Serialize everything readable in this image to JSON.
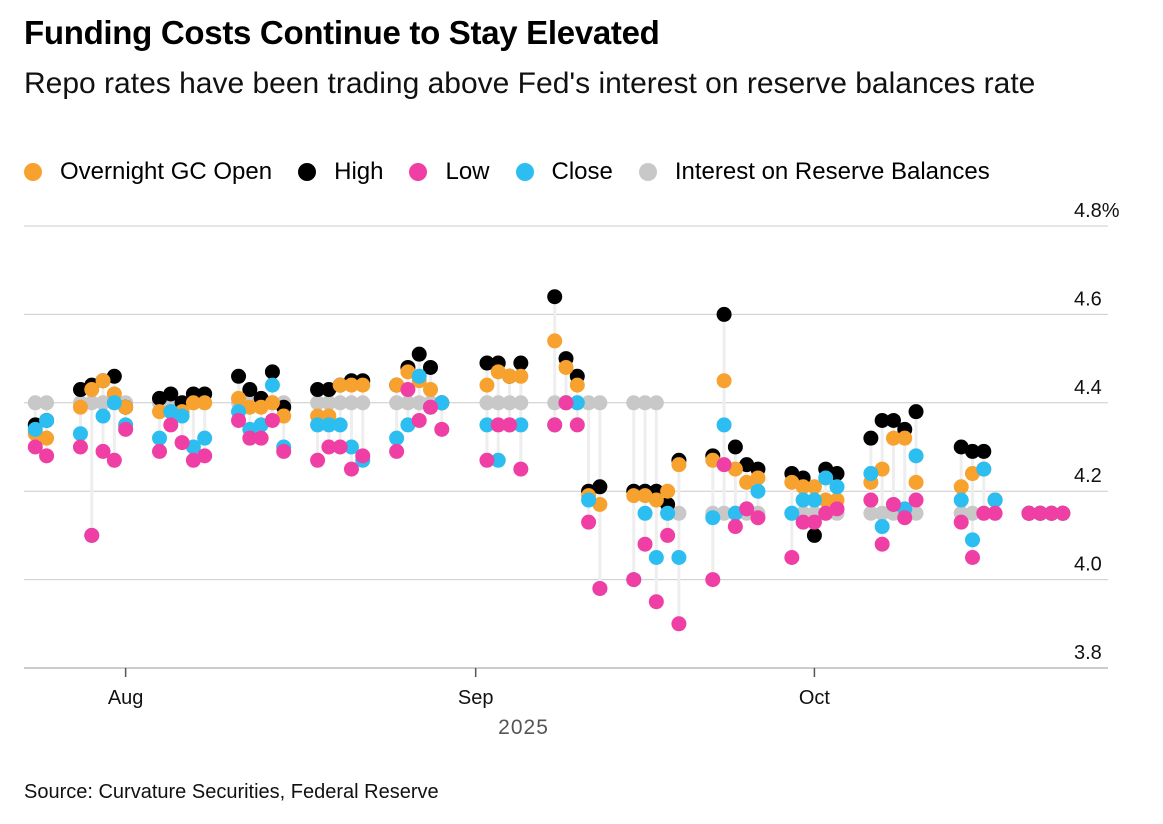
{
  "source_note": "Source: Curvature Securities, Federal Reserve",
  "colors": {
    "open": "#f7a12e",
    "high": "#000000",
    "low": "#ef3ea4",
    "close": "#2cbdf1",
    "iorb": "#c8c8c8",
    "gridline": "#cccccc",
    "stem": "#eeeeee"
  },
  "chart_data": {
    "type": "scatter",
    "title": "Funding Costs Continue to Stay Elevated",
    "subtitle": "Repo rates have been trading above Fed's interest on reserve balances rate",
    "xlabel": "2025",
    "ylabel": "",
    "ylim": [
      3.8,
      4.8
    ],
    "yticks": [
      3.8,
      4.0,
      4.2,
      4.4,
      4.6,
      4.8
    ],
    "ytick_labels": [
      "3.8",
      "4.0",
      "4.2",
      "4.4",
      "4.6",
      "4.8%"
    ],
    "xlim": [
      "2025-07-23",
      "2025-10-27"
    ],
    "xticks": [
      {
        "date": "2025-08-01",
        "label": "Aug"
      },
      {
        "date": "2025-09-01",
        "label": "Sep"
      },
      {
        "date": "2025-10-01",
        "label": "Oct"
      }
    ],
    "grid": true,
    "legend_position": "top-left",
    "legend": [
      "Overnight GC Open",
      "High",
      "Low",
      "Close",
      "Interest on Reserve Balances"
    ],
    "dates": [
      "2025-07-24",
      "2025-07-25",
      "2025-07-28",
      "2025-07-29",
      "2025-07-30",
      "2025-07-31",
      "2025-08-01",
      "2025-08-04",
      "2025-08-05",
      "2025-08-06",
      "2025-08-07",
      "2025-08-08",
      "2025-08-11",
      "2025-08-12",
      "2025-08-13",
      "2025-08-14",
      "2025-08-15",
      "2025-08-18",
      "2025-08-19",
      "2025-08-20",
      "2025-08-21",
      "2025-08-22",
      "2025-08-25",
      "2025-08-26",
      "2025-08-27",
      "2025-08-28",
      "2025-08-29",
      "2025-09-02",
      "2025-09-03",
      "2025-09-04",
      "2025-09-05",
      "2025-09-08",
      "2025-09-09",
      "2025-09-10",
      "2025-09-11",
      "2025-09-12",
      "2025-09-15",
      "2025-09-16",
      "2025-09-17",
      "2025-09-18",
      "2025-09-19",
      "2025-09-22",
      "2025-09-23",
      "2025-09-24",
      "2025-09-25",
      "2025-09-26",
      "2025-09-29",
      "2025-09-30",
      "2025-10-01",
      "2025-10-02",
      "2025-10-03",
      "2025-10-06",
      "2025-10-07",
      "2025-10-08",
      "2025-10-09",
      "2025-10-10",
      "2025-10-14",
      "2025-10-15",
      "2025-10-16",
      "2025-10-17",
      "2025-10-20",
      "2025-10-21",
      "2025-10-22",
      "2025-10-23"
    ],
    "series": [
      {
        "name": "Interest on Reserve Balances",
        "key": "iorb",
        "values": [
          4.4,
          4.4,
          4.4,
          4.4,
          4.4,
          4.4,
          4.4,
          4.4,
          4.4,
          4.4,
          4.4,
          4.4,
          4.4,
          4.4,
          4.4,
          4.4,
          4.4,
          4.4,
          4.4,
          4.4,
          4.4,
          4.4,
          4.4,
          4.4,
          4.4,
          4.4,
          4.4,
          4.4,
          4.4,
          4.4,
          4.4,
          4.4,
          4.4,
          4.4,
          4.4,
          4.4,
          4.4,
          4.4,
          4.4,
          4.15,
          4.15,
          4.15,
          4.15,
          4.15,
          4.15,
          4.15,
          4.15,
          4.15,
          4.15,
          4.15,
          4.15,
          4.15,
          4.15,
          4.15,
          4.15,
          4.15,
          4.15,
          4.15,
          4.15,
          4.15,
          4.15,
          4.15,
          4.15,
          4.15
        ]
      },
      {
        "name": "High",
        "key": "high",
        "values": [
          4.35,
          4.36,
          4.43,
          4.44,
          4.45,
          4.46,
          4.39,
          4.41,
          4.42,
          4.4,
          4.42,
          4.42,
          4.46,
          4.43,
          4.41,
          4.47,
          4.39,
          4.43,
          4.43,
          4.44,
          4.45,
          4.45,
          4.44,
          4.48,
          4.51,
          4.48,
          4.4,
          4.49,
          4.49,
          4.46,
          4.49,
          4.64,
          4.5,
          4.46,
          4.2,
          4.21,
          4.2,
          4.2,
          4.2,
          4.17,
          4.27,
          4.28,
          4.6,
          4.3,
          4.26,
          4.25,
          4.24,
          4.23,
          4.1,
          4.25,
          4.24,
          4.32,
          4.36,
          4.36,
          4.34,
          4.38,
          4.3,
          4.29,
          4.29,
          4.18,
          4.15,
          4.15,
          4.15,
          4.15
        ]
      },
      {
        "name": "Overnight GC Open",
        "key": "open",
        "values": [
          4.33,
          4.32,
          4.39,
          4.43,
          4.45,
          4.42,
          4.39,
          4.38,
          4.38,
          4.38,
          4.4,
          4.4,
          4.41,
          4.39,
          4.39,
          4.4,
          4.37,
          4.37,
          4.37,
          4.44,
          4.44,
          4.44,
          4.44,
          4.47,
          4.45,
          4.43,
          4.4,
          4.44,
          4.47,
          4.46,
          4.46,
          4.54,
          4.48,
          4.44,
          4.19,
          4.17,
          4.19,
          4.19,
          4.18,
          4.2,
          4.26,
          4.27,
          4.45,
          4.25,
          4.22,
          4.23,
          4.22,
          4.21,
          4.21,
          4.18,
          4.18,
          4.22,
          4.25,
          4.32,
          4.32,
          4.22,
          4.21,
          4.24,
          4.25,
          4.18,
          4.15,
          4.15,
          4.15,
          4.15
        ]
      },
      {
        "name": "Close",
        "key": "close",
        "values": [
          4.34,
          4.36,
          4.33,
          4.1,
          4.37,
          4.4,
          4.35,
          4.32,
          4.38,
          4.37,
          4.3,
          4.32,
          4.38,
          4.34,
          4.35,
          4.44,
          4.3,
          4.35,
          4.35,
          4.35,
          4.3,
          4.27,
          4.32,
          4.35,
          4.46,
          4.39,
          4.4,
          4.35,
          4.27,
          4.35,
          4.35,
          4.35,
          4.4,
          4.4,
          4.18,
          3.98,
          4.0,
          4.15,
          4.05,
          4.15,
          4.05,
          4.14,
          4.35,
          4.15,
          4.16,
          4.2,
          4.15,
          4.18,
          4.18,
          4.23,
          4.21,
          4.24,
          4.12,
          4.17,
          4.16,
          4.28,
          4.18,
          4.09,
          4.25,
          4.18,
          4.15,
          4.15,
          4.15,
          4.15
        ]
      },
      {
        "name": "Low",
        "key": "low",
        "values": [
          4.3,
          4.28,
          4.3,
          4.1,
          4.29,
          4.27,
          4.34,
          4.29,
          4.35,
          4.31,
          4.27,
          4.28,
          4.36,
          4.32,
          4.32,
          4.36,
          4.29,
          4.27,
          4.3,
          4.3,
          4.25,
          4.28,
          4.29,
          4.43,
          4.36,
          4.39,
          4.34,
          4.27,
          4.35,
          4.35,
          4.25,
          4.35,
          4.4,
          4.35,
          4.13,
          3.98,
          4.0,
          4.08,
          3.95,
          4.1,
          3.9,
          4.0,
          4.26,
          4.12,
          4.16,
          4.14,
          4.05,
          4.13,
          4.13,
          4.15,
          4.16,
          4.18,
          4.08,
          4.17,
          4.14,
          4.18,
          4.13,
          4.05,
          4.15,
          4.15,
          4.15,
          4.15,
          4.15,
          4.15
        ]
      }
    ]
  }
}
